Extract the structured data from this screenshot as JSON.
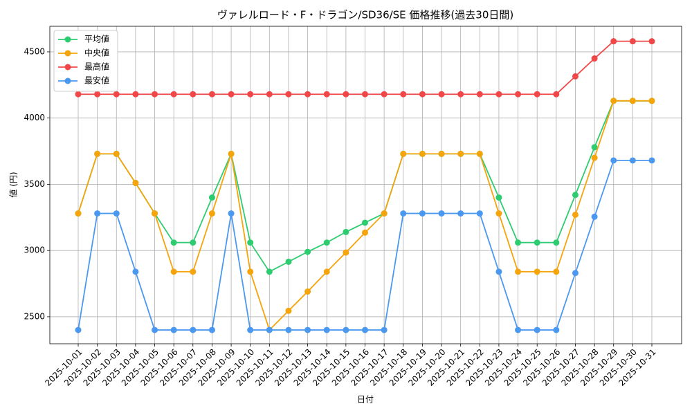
{
  "chart_data": {
    "type": "line",
    "title": "ヴァレルロード・F・ドラゴン/SD36/SE 価格推移(過去30日間)",
    "x_label": "日付",
    "y_label": "値 (円)",
    "categories": [
      "2025-10-01",
      "2025-10-02",
      "2025-10-03",
      "2025-10-04",
      "2025-10-05",
      "2025-10-06",
      "2025-10-07",
      "2025-10-08",
      "2025-10-09",
      "2025-10-10",
      "2025-10-11",
      "2025-10-12",
      "2025-10-13",
      "2025-10-14",
      "2025-10-15",
      "2025-10-16",
      "2025-10-17",
      "2025-10-18",
      "2025-10-19",
      "2025-10-20",
      "2025-10-21",
      "2025-10-22",
      "2025-10-23",
      "2025-10-24",
      "2025-10-25",
      "2025-10-26",
      "2025-10-27",
      "2025-10-28",
      "2025-10-29",
      "2025-10-30",
      "2025-10-31"
    ],
    "series": [
      {
        "name": "平均値",
        "color": "#2ecc71",
        "values": [
          3280,
          3730,
          3730,
          3510,
          3280,
          3060,
          3060,
          3400,
          3730,
          3060,
          2840,
          2915,
          2990,
          3060,
          3140,
          3210,
          3280,
          3730,
          3730,
          3730,
          3730,
          3730,
          3400,
          3060,
          3060,
          3060,
          3420,
          3780,
          4130,
          4130,
          4130
        ]
      },
      {
        "name": "中央値",
        "color": "#f5a40c",
        "values": [
          3280,
          3730,
          3730,
          3510,
          3280,
          2840,
          2840,
          3280,
          3730,
          2840,
          2400,
          2545,
          2690,
          2840,
          2985,
          3135,
          3280,
          3730,
          3730,
          3730,
          3730,
          3730,
          3280,
          2840,
          2840,
          2840,
          3270,
          3700,
          4130,
          4130,
          4130
        ]
      },
      {
        "name": "最高値",
        "color": "#f04848",
        "values": [
          4180,
          4180,
          4180,
          4180,
          4180,
          4180,
          4180,
          4180,
          4180,
          4180,
          4180,
          4180,
          4180,
          4180,
          4180,
          4180,
          4180,
          4180,
          4180,
          4180,
          4180,
          4180,
          4180,
          4180,
          4180,
          4180,
          4315,
          4450,
          4580,
          4580,
          4580
        ]
      },
      {
        "name": "最安値",
        "color": "#4a98f0",
        "values": [
          2400,
          3280,
          3280,
          2840,
          2400,
          2400,
          2400,
          2400,
          3280,
          2400,
          2400,
          2400,
          2400,
          2400,
          2400,
          2400,
          2400,
          3280,
          3280,
          3280,
          3280,
          3280,
          2840,
          2400,
          2400,
          2400,
          2830,
          3255,
          3680,
          3680,
          3680
        ]
      }
    ],
    "ylim": [
      2296,
      4693
    ],
    "yticks": [
      2500,
      3000,
      3500,
      4000,
      4500
    ],
    "grid": true,
    "legend": "upper left"
  }
}
